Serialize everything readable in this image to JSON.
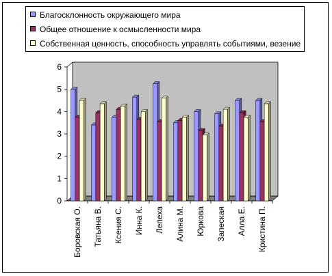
{
  "chart_data": {
    "type": "bar",
    "categories": [
      "Боровская О.",
      "Татьяна В.",
      "Ксения С.",
      "Инна К.",
      "Лепеха",
      "Алина М.",
      "Юркова",
      "Запеская",
      "Алла Е.",
      "Кристина П."
    ],
    "series": [
      {
        "name": "Благосклонность окружающего мира",
        "color": "#9999ff",
        "values": [
          5.0,
          3.4,
          3.75,
          4.65,
          5.25,
          3.5,
          4.0,
          3.9,
          4.5,
          4.5
        ]
      },
      {
        "name": "Общее отношение к осмысленности мира",
        "color": "#993366",
        "values": [
          3.75,
          3.95,
          4.1,
          3.65,
          3.55,
          3.6,
          3.15,
          3.35,
          3.95,
          3.55
        ]
      },
      {
        "name": "Собственная ценность, способность управлять событиями, везение",
        "color": "#ffffcc",
        "values": [
          4.5,
          4.35,
          4.25,
          4.0,
          4.6,
          3.75,
          2.95,
          4.1,
          3.75,
          4.35
        ]
      }
    ],
    "y_ticks": [
      "0",
      "1",
      "2",
      "3",
      "4",
      "5",
      "6"
    ],
    "ylim": [
      0,
      6
    ],
    "grid": false,
    "legend_position": "top",
    "plot_wall_color": "#c0c0c0",
    "floor_color": "#808080"
  }
}
